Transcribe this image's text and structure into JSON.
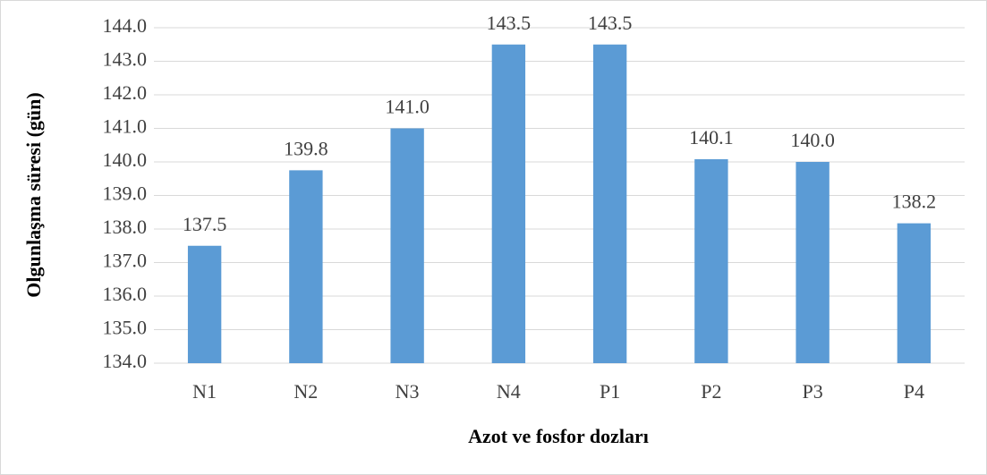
{
  "chart_data": {
    "type": "bar",
    "x_label": "Azot ve fosfor dozları",
    "y_label": "Olgunlaşma süresi (gün)",
    "categories": [
      "N1",
      "N2",
      "N3",
      "N4",
      "P1",
      "P2",
      "P3",
      "P4"
    ],
    "values": [
      137.5,
      139.75,
      141,
      143.5,
      143.5,
      140.08,
      140,
      138.17
    ],
    "value_labels": [
      "137.5",
      "139.8",
      "141.0",
      "143.5",
      "143.5",
      "140.1",
      "140.0",
      "138.2"
    ],
    "color": "#5b9bd5",
    "ylim": [
      134,
      144
    ],
    "yticks": [
      {
        "value": 134,
        "label": "134.0"
      },
      {
        "value": 135,
        "label": "135.0"
      },
      {
        "value": 136,
        "label": "136.0"
      },
      {
        "value": 137,
        "label": "137.0"
      },
      {
        "value": 138,
        "label": "138.0"
      },
      {
        "value": 139,
        "label": "139.0"
      },
      {
        "value": 140,
        "label": "140.0"
      },
      {
        "value": 141,
        "label": "141.0"
      },
      {
        "value": 142,
        "label": "142.0"
      },
      {
        "value": 143,
        "label": "143.0"
      },
      {
        "value": 144,
        "label": "144.0"
      }
    ],
    "grid": true
  }
}
